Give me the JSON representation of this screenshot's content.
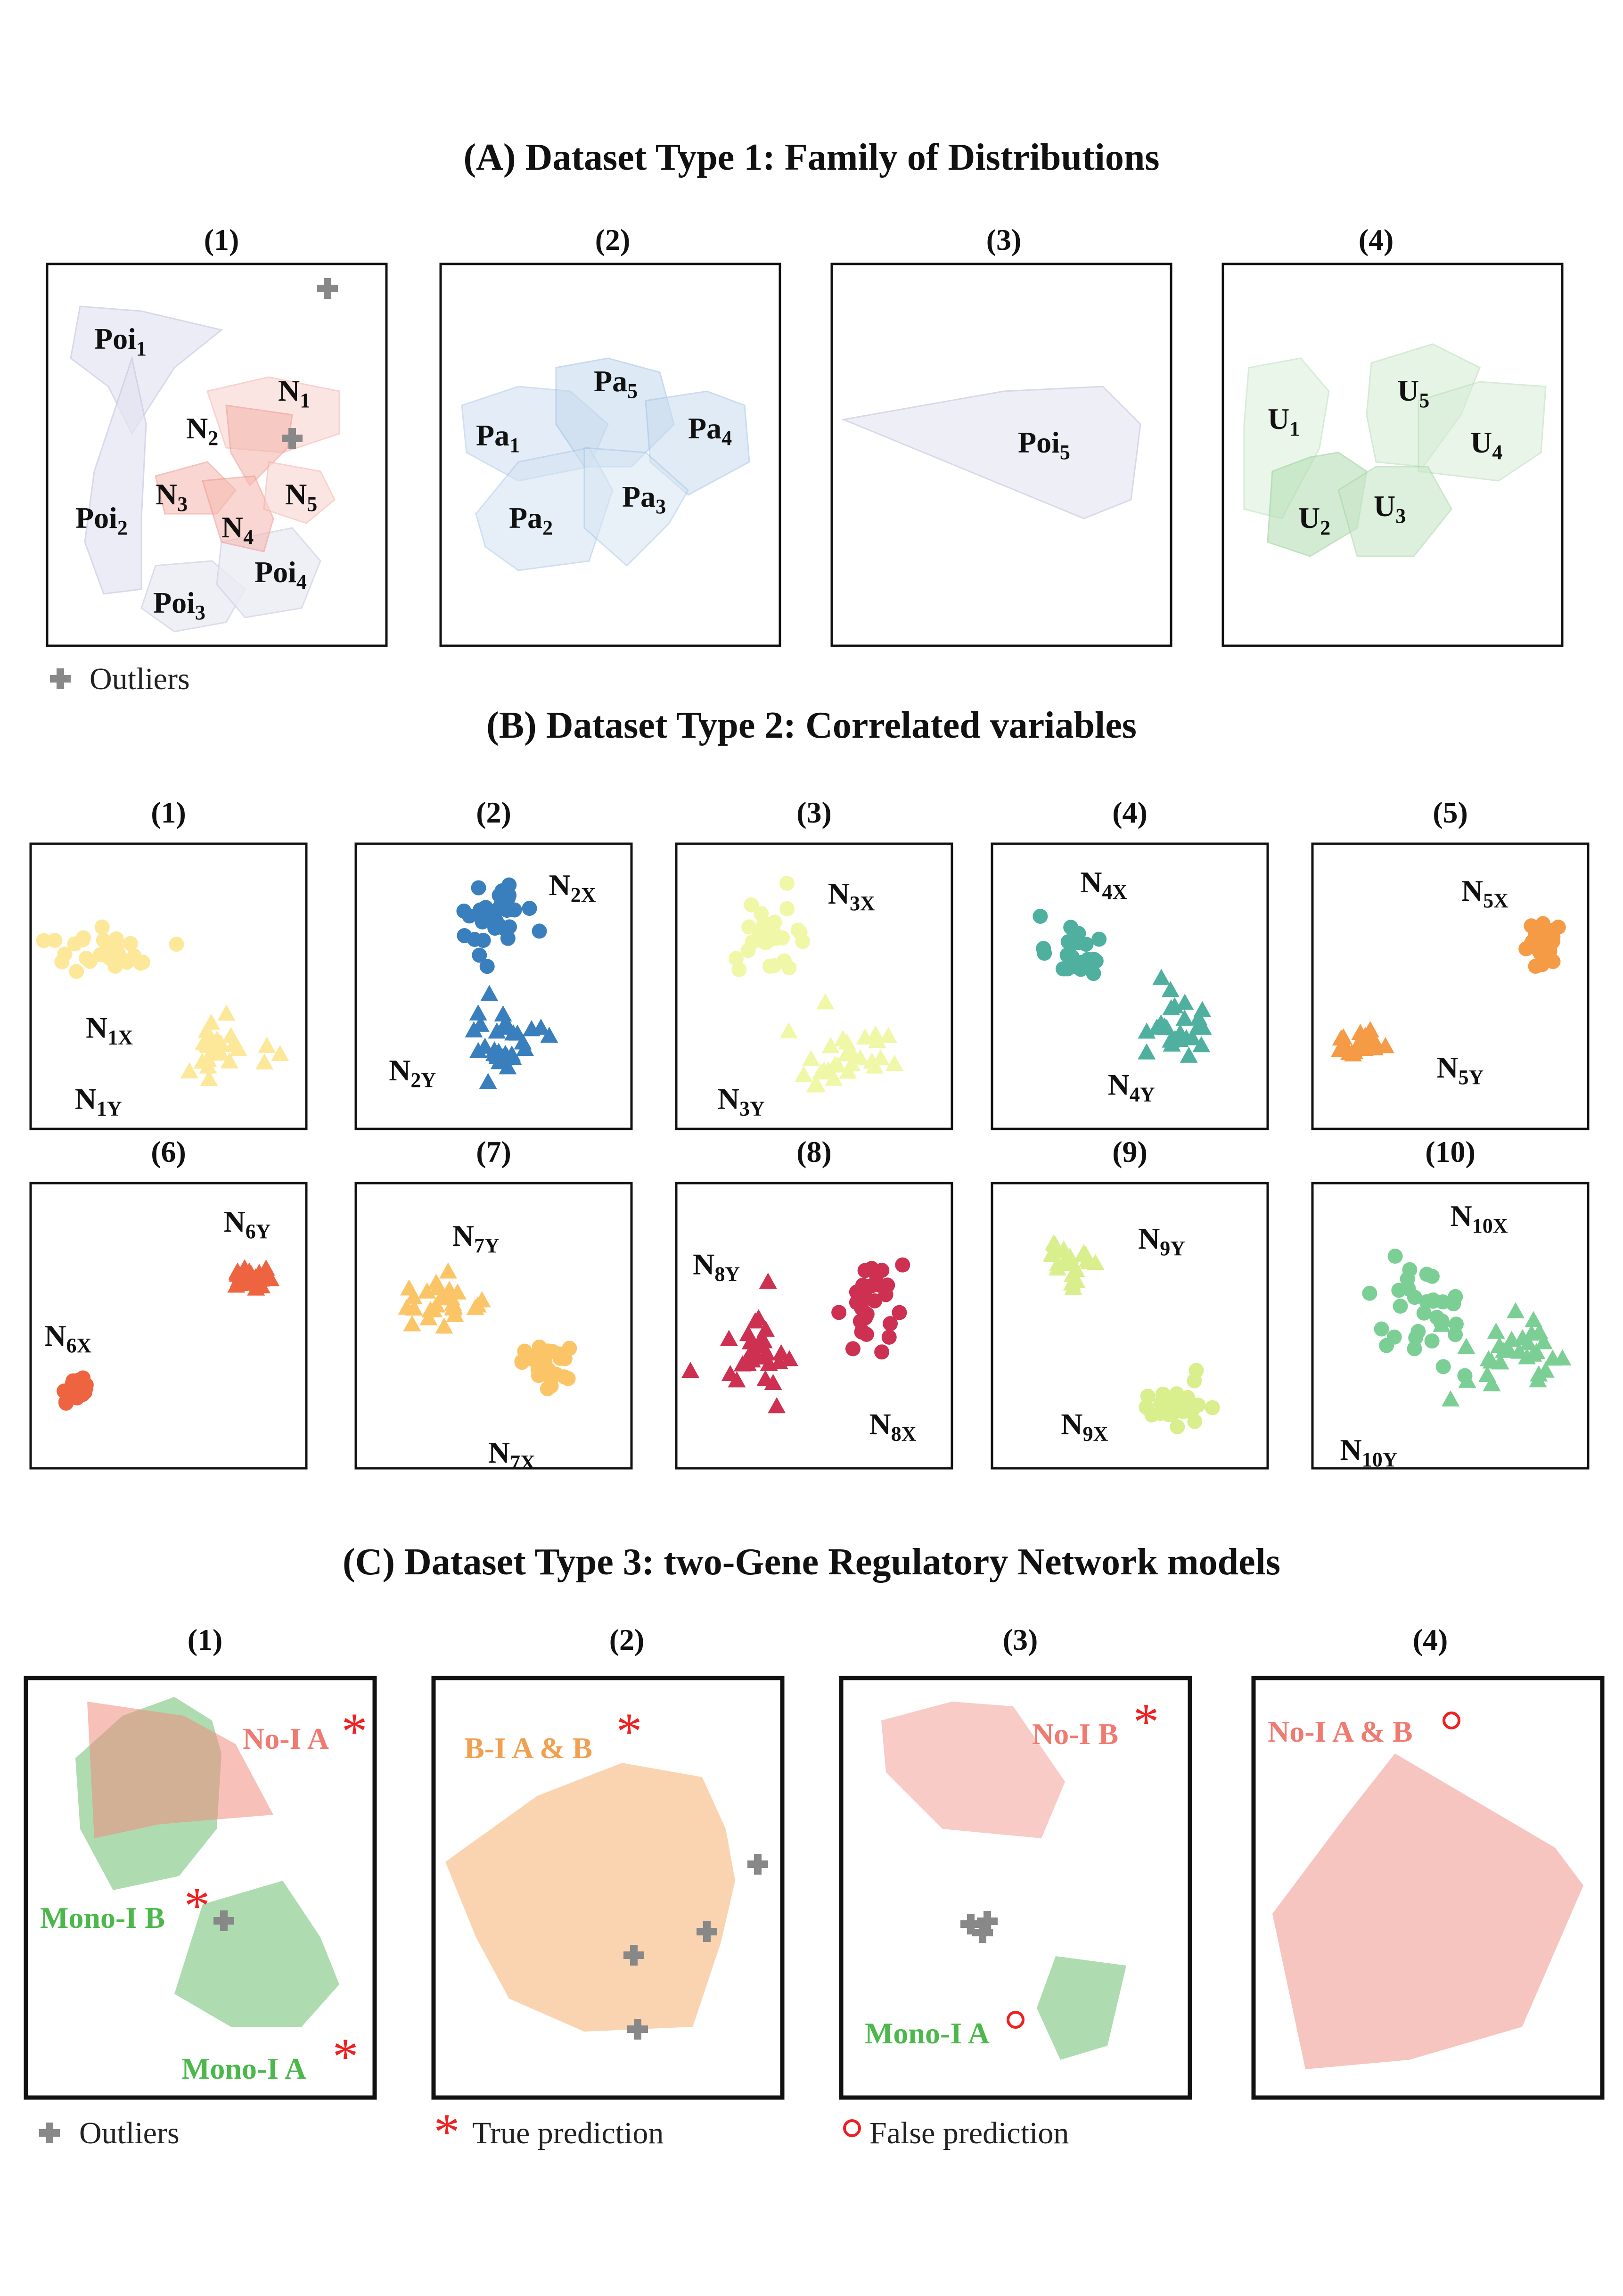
{
  "sectionA": {
    "title": "(A) Dataset Type 1:  Family of Distributions",
    "panels": [
      "(1)",
      "(2)",
      "(3)",
      "(4)"
    ],
    "labels": {
      "poi1": "Poi",
      "poi1_sub": "1",
      "n1": "N",
      "n1_sub": "1",
      "n2": "N",
      "n2_sub": "2",
      "n3": "N",
      "n3_sub": "3",
      "n4": "N",
      "n4_sub": "4",
      "n5": "N",
      "n5_sub": "5",
      "poi2": "Poi",
      "poi2_sub": "2",
      "poi3": "Poi",
      "poi3_sub": "3",
      "poi4": "Poi",
      "poi4_sub": "4",
      "pa1": "Pa",
      "pa1_sub": "1",
      "pa2": "Pa",
      "pa2_sub": "2",
      "pa3": "Pa",
      "pa3_sub": "3",
      "pa4": "Pa",
      "pa4_sub": "4",
      "pa5": "Pa",
      "pa5_sub": "5",
      "poi5": "Poi",
      "poi5_sub": "5",
      "u1": "U",
      "u1_sub": "1",
      "u2": "U",
      "u2_sub": "2",
      "u3": "U",
      "u3_sub": "3",
      "u4": "U",
      "u4_sub": "4",
      "u5": "U",
      "u5_sub": "5"
    },
    "legend": "Outliers"
  },
  "sectionB": {
    "title": "(B) Dataset Type 2:  Correlated variables",
    "panels": [
      "(1)",
      "(2)",
      "(3)",
      "(4)",
      "(5)",
      "(6)",
      "(7)",
      "(8)",
      "(9)",
      "(10)"
    ],
    "labels": [
      {
        "x": "N",
        "xs": "1X",
        "y": "N",
        "ys": "1Y"
      },
      {
        "x": "N",
        "xs": "2X",
        "y": "N",
        "ys": "2Y"
      },
      {
        "x": "N",
        "xs": "3X",
        "y": "N",
        "ys": "3Y"
      },
      {
        "x": "N",
        "xs": "4X",
        "y": "N",
        "ys": "4Y"
      },
      {
        "x": "N",
        "xs": "5X",
        "y": "N",
        "ys": "5Y"
      },
      {
        "x": "N",
        "xs": "6X",
        "y": "N",
        "ys": "6Y"
      },
      {
        "x": "N",
        "xs": "7X",
        "y": "N",
        "ys": "7Y"
      },
      {
        "x": "N",
        "xs": "8X",
        "y": "N",
        "ys": "8Y"
      },
      {
        "x": "N",
        "xs": "9X",
        "y": "N",
        "ys": "9Y"
      },
      {
        "x": "N",
        "xs": "10X",
        "y": "N",
        "ys": "10Y"
      }
    ],
    "colors": [
      "#fde89a",
      "#3a7fbd",
      "#f0f7a6",
      "#4fb0a0",
      "#f59a45",
      "#ef6440",
      "#fbc567",
      "#cd3050",
      "#d9ee8c",
      "#7ccf94"
    ]
  },
  "sectionC": {
    "title": "(C) Dataset Type 3:  two-Gene Regulatory Network models",
    "panels": [
      "(1)",
      "(2)",
      "(3)",
      "(4)"
    ],
    "labels": {
      "p1_noi": "No-I A",
      "p1_monob": "Mono-I B",
      "p1_monoa": "Mono-I A",
      "p2_bi": "B-I A & B",
      "p3_noib": "No-I B",
      "p3_monoa": "Mono-I A",
      "p4_noiab": "No-I A & B"
    },
    "legend": {
      "outliers": "Outliers",
      "true": "True prediction",
      "false": "False prediction"
    },
    "colors": {
      "red": "#f08c80",
      "green": "#6cc070",
      "orange": "#f6b070",
      "redText": "#f07a70",
      "greenText": "#4cb84c",
      "orangeText": "#f0a050",
      "mark": "#f02020"
    }
  }
}
